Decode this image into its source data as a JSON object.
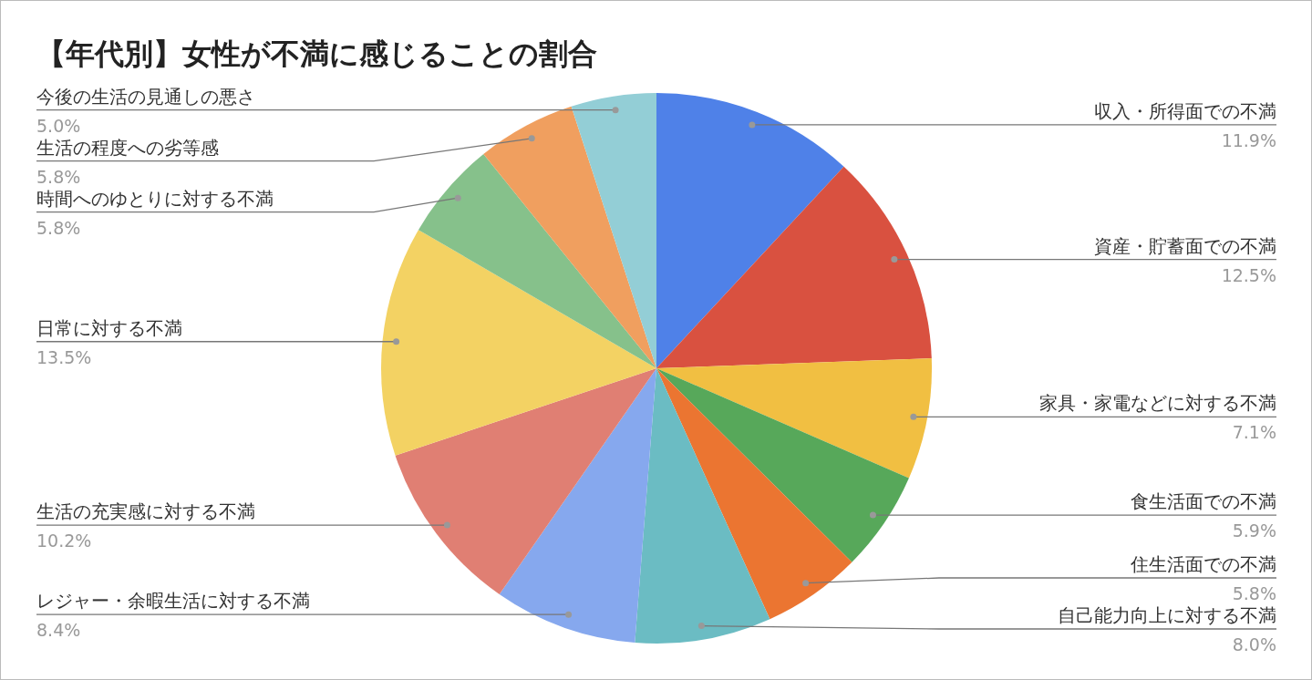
{
  "chart_data": {
    "type": "pie",
    "title": "【年代別】女性が不満に感じることの割合",
    "categories": [
      "収入・所得面での不満",
      "資産・貯蓄面での不満",
      "家具・家電などに対する不満",
      "食生活面での不満",
      "住生活面での不満",
      "自己能力向上に対する不満",
      "レジャー・余暇生活に対する不満",
      "生活の充実感に対する不満",
      "日常に対する不満",
      "時間へのゆとりに対する不満",
      "生活の程度への劣等感",
      "今後の生活の見通しの悪さ"
    ],
    "values": [
      11.9,
      12.5,
      7.1,
      5.9,
      5.8,
      8.0,
      8.4,
      10.2,
      13.5,
      5.8,
      5.8,
      5.0
    ],
    "value_labels": [
      "11.9%",
      "12.5%",
      "7.1%",
      "5.9%",
      "5.8%",
      "8.0%",
      "8.4%",
      "10.2%",
      "13.5%",
      "5.8%",
      "5.8%",
      "5.0%"
    ],
    "colors": [
      "#4f81e8",
      "#d95140",
      "#f1bf42",
      "#57a85a",
      "#eb7531",
      "#6bbcc3",
      "#86a8ee",
      "#e07f73",
      "#f3d263",
      "#86c18b",
      "#f09f5f",
      "#93ced6"
    ]
  }
}
